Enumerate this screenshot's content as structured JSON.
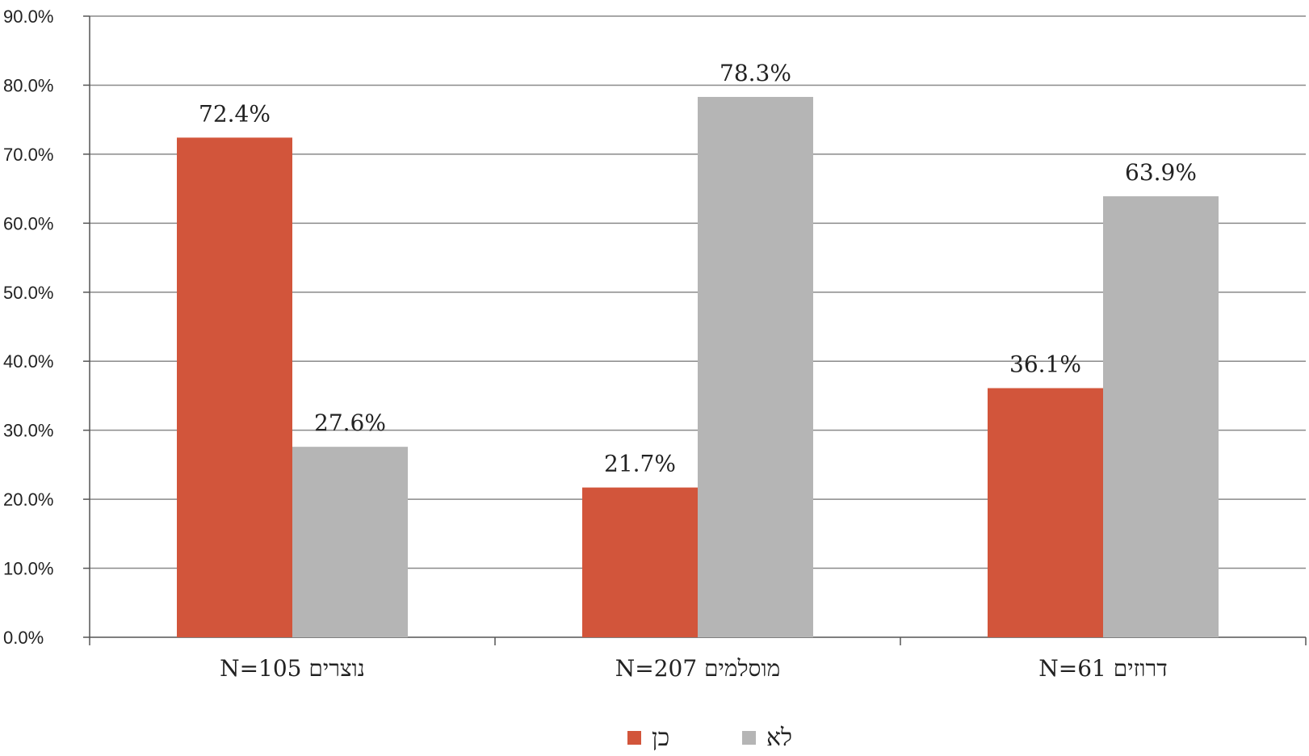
{
  "chart_data": {
    "type": "bar",
    "categories": [
      "נוצרים N=105",
      "מוסלמים N=207",
      "דרוזים N=61"
    ],
    "series": [
      {
        "name": "כן",
        "values": [
          72.4,
          21.7,
          36.1
        ],
        "labels": [
          "72.4%",
          "21.7%",
          "36.1%"
        ],
        "color": "#d2553b"
      },
      {
        "name": "לא",
        "values": [
          27.6,
          78.3,
          63.9
        ],
        "labels": [
          "27.6%",
          "78.3%",
          "63.9%"
        ],
        "color": "#b5b5b5"
      }
    ],
    "yticks": [
      "0.0%",
      "10.0%",
      "20.0%",
      "30.0%",
      "40.0%",
      "50.0%",
      "60.0%",
      "70.0%",
      "80.0%",
      "90.0%"
    ],
    "ylim": [
      0,
      90
    ],
    "grid": true,
    "legend_position": "bottom-center",
    "title": "",
    "xlabel": "",
    "ylabel": ""
  }
}
